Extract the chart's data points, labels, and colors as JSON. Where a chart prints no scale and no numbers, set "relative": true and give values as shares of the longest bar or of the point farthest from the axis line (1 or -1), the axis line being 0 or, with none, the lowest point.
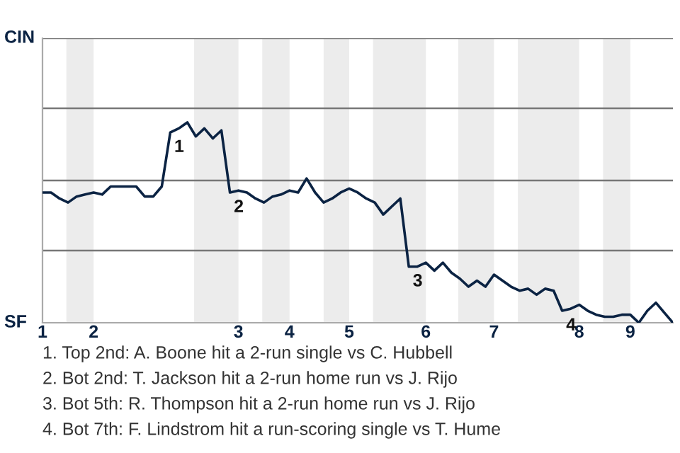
{
  "chart_data": {
    "type": "line",
    "relative": true,
    "categories": [
      "1",
      null,
      null,
      null,
      null,
      null,
      "2",
      null,
      null,
      null,
      null,
      null,
      null,
      null,
      null,
      null,
      null,
      null,
      null,
      null,
      null,
      null,
      null,
      "3",
      null,
      null,
      null,
      null,
      null,
      "4",
      null,
      null,
      null,
      null,
      null,
      null,
      "5",
      null,
      null,
      null,
      null,
      null,
      null,
      null,
      null,
      "6",
      null,
      null,
      null,
      null,
      null,
      null,
      null,
      "7",
      null,
      null,
      null,
      null,
      null,
      null,
      null,
      null,
      null,
      "8",
      null,
      null,
      null,
      null,
      null,
      "9",
      null,
      null,
      null,
      null,
      null
    ],
    "series": [
      {
        "color": "#0b2343",
        "values": [
          0.65,
          0.65,
          0.62,
          0.6,
          0.63,
          0.64,
          0.65,
          0.64,
          0.68,
          0.68,
          0.68,
          0.68,
          0.63,
          0.63,
          0.68,
          0.95,
          0.97,
          1,
          0.93,
          0.97,
          0.92,
          0.96,
          0.65,
          0.66,
          0.65,
          0.62,
          0.6,
          0.63,
          0.64,
          0.66,
          0.65,
          0.72,
          0.65,
          0.6,
          0.62,
          0.65,
          0.67,
          0.65,
          0.62,
          0.6,
          0.54,
          0.58,
          0.62,
          0.28,
          0.28,
          0.3,
          0.26,
          0.3,
          0.25,
          0.22,
          0.18,
          0.21,
          0.18,
          0.24,
          0.21,
          0.18,
          0.16,
          0.17,
          0.14,
          0.17,
          0.16,
          0.06,
          0.07,
          0.09,
          0.06,
          0.04,
          0.03,
          0.03,
          0.04,
          0.04,
          0.0,
          0.06,
          0.1,
          0.05,
          0
        ]
      }
    ],
    "ref_lines": [
      {
        "axis": "y",
        "value": 0.36,
        "color": "#777777"
      },
      {
        "axis": "y",
        "value": 0.71,
        "color": "#777777"
      },
      {
        "axis": "y",
        "value": 1.07,
        "color": "#777777"
      },
      {
        "axis": "y",
        "value": 1.42,
        "color": "#777777"
      }
    ],
    "annotations": [
      {
        "text": "1",
        "y": 0.95
      },
      {
        "text": "2",
        "y": 0.65
      },
      {
        "text": "3",
        "y": 0.28
      },
      {
        "text": "4",
        "y": 0.06
      },
      "CIN",
      "SF",
      "1. Top 2nd: A. Boone hit a 2-run single vs C. Hubbell",
      "2. Bot 2nd: T. Jackson hit a 2-run home run vs J. Rijo",
      "3. Bot 5th: R. Thompson hit a 2-run home run vs J. Rijo",
      "4. Bot 7th: F. Lindstrom hit a run-scoring single vs T. Hume"
    ],
    "marker": "none",
    "line_style": "solid",
    "legend": false
  }
}
